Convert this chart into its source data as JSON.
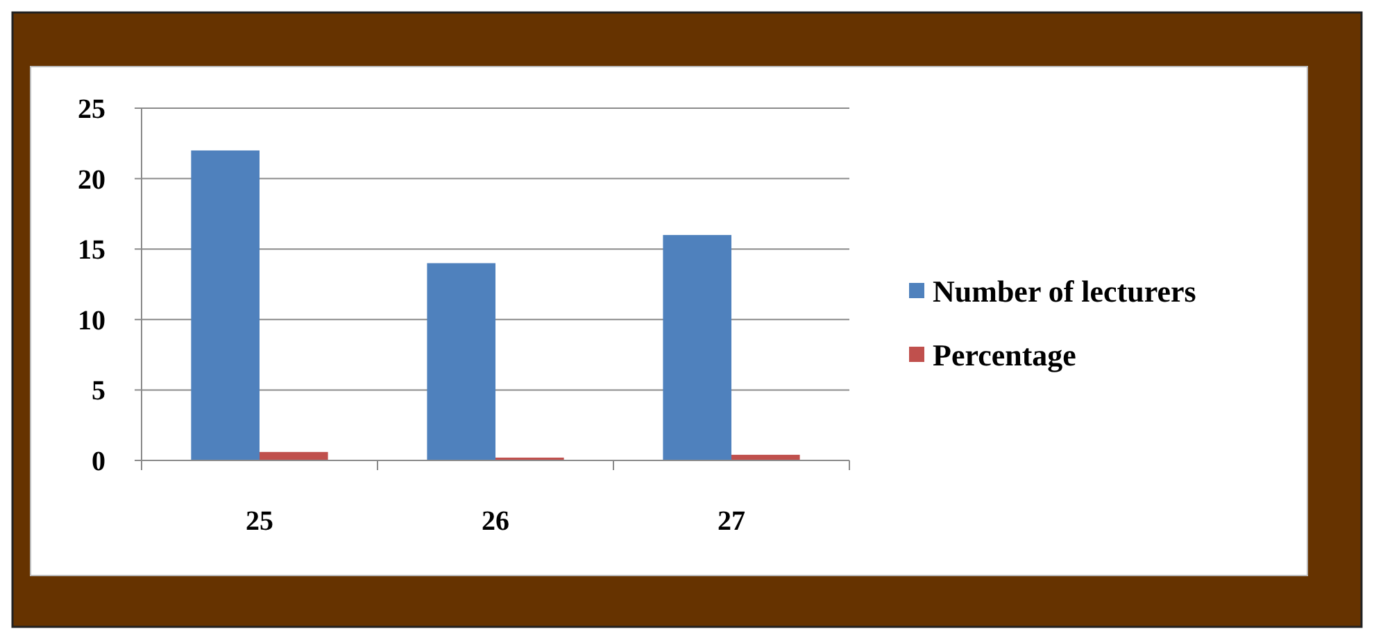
{
  "chart_data": {
    "type": "bar",
    "categories": [
      "25",
      "26",
      "27"
    ],
    "series": [
      {
        "name": "Number of lecturers",
        "color": "#4f81bd",
        "values": [
          22,
          14,
          16
        ]
      },
      {
        "name": "Percentage",
        "color": "#c0504d",
        "values": [
          0.6,
          0.2,
          0.4
        ]
      }
    ],
    "ylim": [
      0,
      25
    ],
    "yticks": [
      0,
      5,
      10,
      15,
      20,
      25
    ],
    "grid": "y",
    "legend": "right"
  }
}
